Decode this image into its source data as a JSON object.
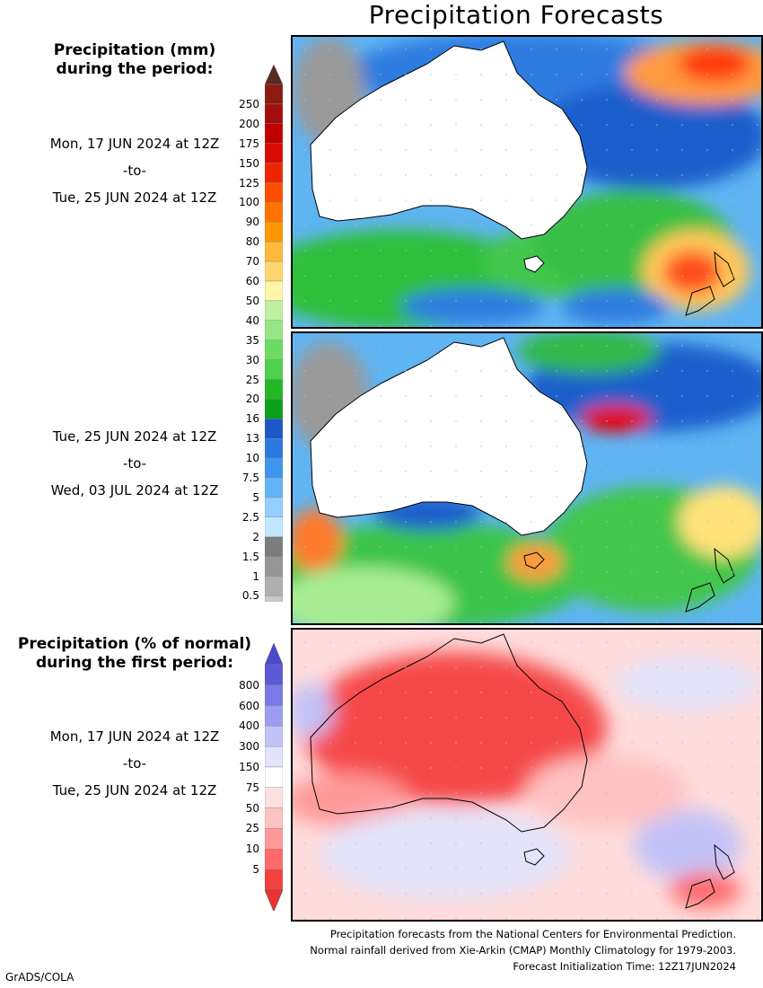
{
  "title": "Precipitation Forecasts",
  "legend_mm": {
    "heading_line1": "Precipitation (mm)",
    "heading_line2": "during the period:",
    "ticks": [
      "250",
      "200",
      "175",
      "150",
      "125",
      "100",
      "90",
      "80",
      "70",
      "60",
      "50",
      "40",
      "35",
      "30",
      "25",
      "20",
      "16",
      "13",
      "10",
      "7.5",
      "5",
      "2.5",
      "2",
      "1.5",
      "1",
      "0.5"
    ],
    "colors": [
      "#8b1a10",
      "#a30d0d",
      "#c00000",
      "#d90a00",
      "#ec2600",
      "#ff4e00",
      "#ff7400",
      "#ff9700",
      "#ffb93c",
      "#ffd56d",
      "#fff7a8",
      "#bef0a0",
      "#94e682",
      "#6bdb64",
      "#4fd24b",
      "#21b824",
      "#0b9f1a",
      "#1e58c6",
      "#2b79e0",
      "#3d95ee",
      "#63b4f7",
      "#94ceff",
      "#bfe7ff",
      "#7c7c7c",
      "#969696",
      "#afafaf",
      "#c8c8c8"
    ],
    "top_arrow_color": "#5a2a24",
    "bottom_arrow_color": "#ffffff"
  },
  "legend_pct": {
    "heading_line1": "Precipitation (% of normal)",
    "heading_line2": "during the first period:",
    "ticks": [
      "800",
      "600",
      "400",
      "300",
      "150",
      "75",
      "50",
      "25",
      "10",
      "5"
    ],
    "colors": [
      "#5a5ad6",
      "#7a7ae6",
      "#9c9cf0",
      "#c2c2f8",
      "#e3e3fb",
      "#ffffff",
      "#ffe0e0",
      "#ffc2c2",
      "#ff9a9a",
      "#ff6a6a",
      "#f54040"
    ],
    "top_arrow_color": "#4a4ad0",
    "bottom_arrow_color": "#ee3030"
  },
  "period1": {
    "start": "Mon, 17 JUN 2024 at 12Z",
    "sep": "-to-",
    "end": "Tue, 25 JUN 2024 at 12Z"
  },
  "period2": {
    "start": "Tue, 25 JUN 2024 at 12Z",
    "sep": "-to-",
    "end": "Wed, 03 JUL 2024 at 12Z"
  },
  "period3": {
    "start": "Mon, 17 JUN 2024 at 12Z",
    "sep": "-to-",
    "end": "Tue, 25 JUN 2024 at 12Z"
  },
  "maps": [
    {
      "name": "panel-1-forecast-mm",
      "region": "Australia / New Zealand"
    },
    {
      "name": "panel-2-forecast-mm",
      "region": "Australia / New Zealand"
    },
    {
      "name": "panel-3-percent-of-normal",
      "region": "Australia / New Zealand"
    }
  ],
  "footer": {
    "line1": "Precipitation forecasts from the National Centers for Environmental Prediction.",
    "line2": "Normal rainfall derived from Xie-Arkin (CMAP) Monthly Climatology for 1979-2003.",
    "line3": "Forecast Initialization Time: 12Z17JUN2024"
  },
  "credit": "GrADS/COLA"
}
